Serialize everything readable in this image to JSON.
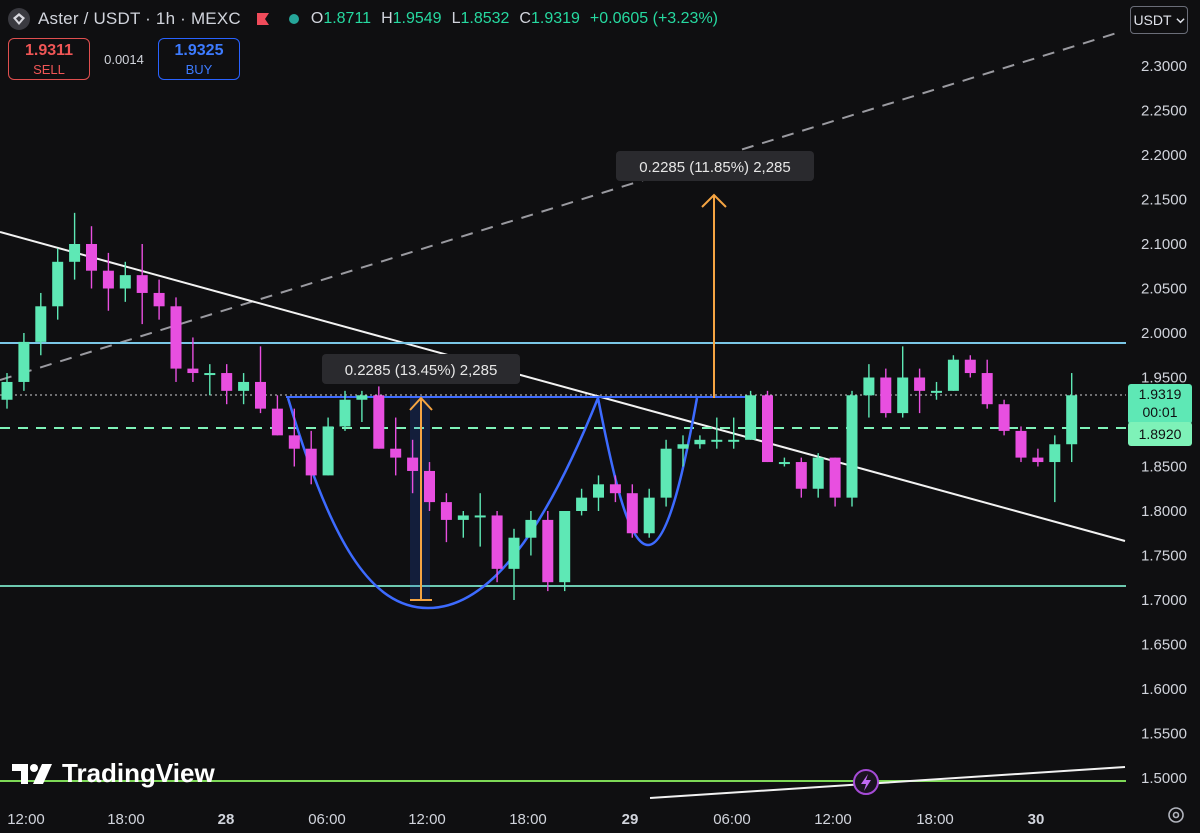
{
  "header": {
    "title": "Aster / USDT · 1h · MEXC",
    "ohlc": [
      {
        "k": "O",
        "v": "1.8711"
      },
      {
        "k": "H",
        "v": "1.9549"
      },
      {
        "k": "L",
        "v": "1.8532"
      },
      {
        "k": "C",
        "v": "1.9319"
      },
      {
        "k": "",
        "v": "+0.0605 (+3.23%)"
      }
    ]
  },
  "trade": {
    "sell_price": "1.9311",
    "sell_label": "SELL",
    "spread": "0.0014",
    "buy_price": "1.9325",
    "buy_label": "BUY"
  },
  "currency": "USDT",
  "watermark": "TradingView",
  "colors": {
    "up": "#5ee8b5",
    "down": "#e84fe0",
    "bg": "#0f0f11",
    "accent": "#2962ff",
    "measure": "#f5a442"
  },
  "chart_data": {
    "type": "candlestick",
    "y_ticks": [
      "2.3000",
      "2.2500",
      "2.2000",
      "2.1500",
      "2.1000",
      "2.0500",
      "2.0000",
      "1.9500",
      "1.9000",
      "1.8500",
      "1.8000",
      "1.7500",
      "1.7000",
      "1.6500",
      "1.6000",
      "1.5500",
      "1.5000"
    ],
    "x_ticks": [
      "12:00",
      "18:00",
      "28",
      "06:00",
      "12:00",
      "18:00",
      "29",
      "06:00",
      "12:00",
      "18:00",
      "30"
    ],
    "ylim": [
      1.465,
      2.33
    ],
    "price_labels": {
      "last": "1.9319",
      "countdown": "00:01",
      "level": "1.8920"
    },
    "annotations": [
      "0.2285 (13.45%) 2,285",
      "0.2285 (11.85%) 2,285"
    ],
    "candles": [
      [
        1.925,
        1.955,
        1.915,
        1.945
      ],
      [
        1.945,
        2.0,
        1.935,
        1.99
      ],
      [
        1.99,
        2.045,
        1.975,
        2.03
      ],
      [
        2.03,
        2.095,
        2.015,
        2.08
      ],
      [
        2.08,
        2.135,
        2.06,
        2.1
      ],
      [
        2.1,
        2.12,
        2.05,
        2.07
      ],
      [
        2.07,
        2.09,
        2.025,
        2.05
      ],
      [
        2.05,
        2.08,
        2.035,
        2.065
      ],
      [
        2.065,
        2.1,
        2.01,
        2.045
      ],
      [
        2.045,
        2.06,
        2.015,
        2.03
      ],
      [
        2.03,
        2.04,
        1.945,
        1.96
      ],
      [
        1.96,
        1.995,
        1.945,
        1.955
      ],
      [
        1.955,
        1.965,
        1.93,
        1.955
      ],
      [
        1.955,
        1.965,
        1.92,
        1.935
      ],
      [
        1.935,
        1.955,
        1.92,
        1.945
      ],
      [
        1.945,
        1.985,
        1.91,
        1.915
      ],
      [
        1.915,
        1.93,
        1.885,
        1.885
      ],
      [
        1.885,
        1.915,
        1.85,
        1.87
      ],
      [
        1.87,
        1.89,
        1.83,
        1.84
      ],
      [
        1.84,
        1.905,
        1.84,
        1.895
      ],
      [
        1.895,
        1.935,
        1.89,
        1.925
      ],
      [
        1.925,
        1.935,
        1.9,
        1.93
      ],
      [
        1.93,
        1.94,
        1.87,
        1.87
      ],
      [
        1.87,
        1.905,
        1.84,
        1.86
      ],
      [
        1.86,
        1.88,
        1.82,
        1.845
      ],
      [
        1.845,
        1.855,
        1.8,
        1.81
      ],
      [
        1.81,
        1.82,
        1.765,
        1.79
      ],
      [
        1.79,
        1.8,
        1.77,
        1.795
      ],
      [
        1.795,
        1.82,
        1.76,
        1.795
      ],
      [
        1.795,
        1.8,
        1.72,
        1.735
      ],
      [
        1.735,
        1.78,
        1.7,
        1.77
      ],
      [
        1.77,
        1.8,
        1.75,
        1.79
      ],
      [
        1.79,
        1.8,
        1.71,
        1.72
      ],
      [
        1.72,
        1.8,
        1.71,
        1.8
      ],
      [
        1.8,
        1.825,
        1.795,
        1.815
      ],
      [
        1.815,
        1.84,
        1.8,
        1.83
      ],
      [
        1.83,
        1.84,
        1.81,
        1.82
      ],
      [
        1.82,
        1.83,
        1.77,
        1.775
      ],
      [
        1.775,
        1.825,
        1.77,
        1.815
      ],
      [
        1.815,
        1.88,
        1.805,
        1.87
      ],
      [
        1.87,
        1.885,
        1.85,
        1.875
      ],
      [
        1.875,
        1.885,
        1.87,
        1.88
      ],
      [
        1.88,
        1.905,
        1.87,
        1.88
      ],
      [
        1.88,
        1.905,
        1.87,
        1.88
      ],
      [
        1.88,
        1.935,
        1.88,
        1.93
      ],
      [
        1.93,
        1.935,
        1.855,
        1.855
      ],
      [
        1.855,
        1.86,
        1.85,
        1.855
      ],
      [
        1.855,
        1.86,
        1.815,
        1.825
      ],
      [
        1.825,
        1.865,
        1.815,
        1.86
      ],
      [
        1.86,
        1.86,
        1.805,
        1.815
      ],
      [
        1.815,
        1.935,
        1.805,
        1.93
      ],
      [
        1.93,
        1.965,
        1.905,
        1.95
      ],
      [
        1.95,
        1.96,
        1.905,
        1.91
      ],
      [
        1.91,
        1.985,
        1.905,
        1.95
      ],
      [
        1.95,
        1.96,
        1.91,
        1.935
      ],
      [
        1.935,
        1.945,
        1.925,
        1.935
      ],
      [
        1.935,
        1.975,
        1.935,
        1.97
      ],
      [
        1.97,
        1.975,
        1.95,
        1.955
      ],
      [
        1.955,
        1.97,
        1.915,
        1.92
      ],
      [
        1.92,
        1.925,
        1.885,
        1.89
      ],
      [
        1.89,
        1.895,
        1.855,
        1.86
      ],
      [
        1.86,
        1.87,
        1.85,
        1.855
      ],
      [
        1.855,
        1.885,
        1.81,
        1.875
      ],
      [
        1.875,
        1.955,
        1.855,
        1.93
      ]
    ]
  }
}
